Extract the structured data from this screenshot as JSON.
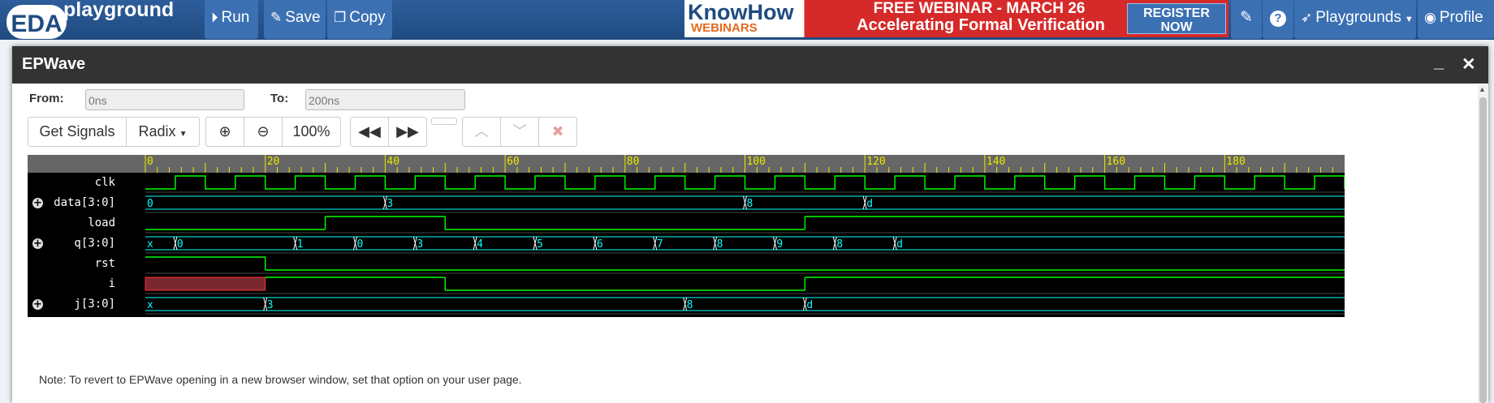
{
  "header": {
    "logo_eda": "EDA",
    "logo_playground": "playground",
    "buttons": [
      {
        "icon": "play-circle-icon",
        "label": "Run"
      },
      {
        "icon": "pencil-icon",
        "label": "Save"
      },
      {
        "icon": "copy-icon",
        "label": "Copy"
      }
    ],
    "ad": {
      "brand_top": "KnowHow",
      "brand_bottom": "WEBINARS",
      "line1": "FREE WEBINAR - MARCH 26",
      "line2": "Accelerating Formal Verification",
      "register_line1": "REGISTER",
      "register_line2": "NOW"
    },
    "playgrounds_label": "Playgrounds",
    "profile_label": "Profile"
  },
  "modal": {
    "title": "EPWave",
    "from_label": "From:",
    "from_value": "0ns",
    "to_label": "To:",
    "to_value": "200ns",
    "get_signals": "Get Signals",
    "radix": "Radix",
    "zoom": "100%",
    "note": "Note: To revert to EPWave opening in a new browser window, set that option on your user page."
  },
  "waveform": {
    "time_range": [
      0,
      200
    ],
    "ruler_ticks": [
      0,
      20,
      40,
      60,
      80,
      100,
      120,
      140,
      160,
      180
    ],
    "colors": {
      "bit": "#00ff00",
      "bus": "#00ffff",
      "x": "#ff3030",
      "bus_label": "#00ffff"
    },
    "clk_period": 10,
    "clk_first_rise": 5,
    "signals": [
      {
        "name": "clk",
        "type": "clock",
        "expandable": false
      },
      {
        "name": "data[3:0]",
        "type": "bus",
        "expandable": true,
        "values": [
          {
            "t": 0,
            "v": "0"
          },
          {
            "t": 40,
            "v": "3"
          },
          {
            "t": 100,
            "v": "8"
          },
          {
            "t": 120,
            "v": "d"
          }
        ]
      },
      {
        "name": "load",
        "type": "bit",
        "expandable": false,
        "values": [
          {
            "t": 0,
            "v": 0
          },
          {
            "t": 30,
            "v": 1
          },
          {
            "t": 50,
            "v": 0
          },
          {
            "t": 110,
            "v": 1
          }
        ]
      },
      {
        "name": "q[3:0]",
        "type": "bus",
        "expandable": true,
        "values": [
          {
            "t": 0,
            "v": "x"
          },
          {
            "t": 5,
            "v": "0"
          },
          {
            "t": 25,
            "v": "1"
          },
          {
            "t": 35,
            "v": "0"
          },
          {
            "t": 45,
            "v": "3"
          },
          {
            "t": 55,
            "v": "4"
          },
          {
            "t": 65,
            "v": "5"
          },
          {
            "t": 75,
            "v": "6"
          },
          {
            "t": 85,
            "v": "7"
          },
          {
            "t": 95,
            "v": "8"
          },
          {
            "t": 105,
            "v": "9"
          },
          {
            "t": 115,
            "v": "8"
          },
          {
            "t": 125,
            "v": "d"
          }
        ]
      },
      {
        "name": "rst",
        "type": "bit",
        "expandable": false,
        "values": [
          {
            "t": 0,
            "v": 1
          },
          {
            "t": 20,
            "v": 0
          }
        ]
      },
      {
        "name": "i",
        "type": "bit",
        "expandable": false,
        "values": [
          {
            "t": 0,
            "v": "x"
          },
          {
            "t": 20,
            "v": 1
          },
          {
            "t": 50,
            "v": 0
          },
          {
            "t": 110,
            "v": 1
          }
        ]
      },
      {
        "name": "j[3:0]",
        "type": "bus",
        "expandable": true,
        "values": [
          {
            "t": 0,
            "v": "x"
          },
          {
            "t": 20,
            "v": "3"
          },
          {
            "t": 90,
            "v": "8"
          },
          {
            "t": 110,
            "v": "d"
          }
        ]
      }
    ]
  }
}
